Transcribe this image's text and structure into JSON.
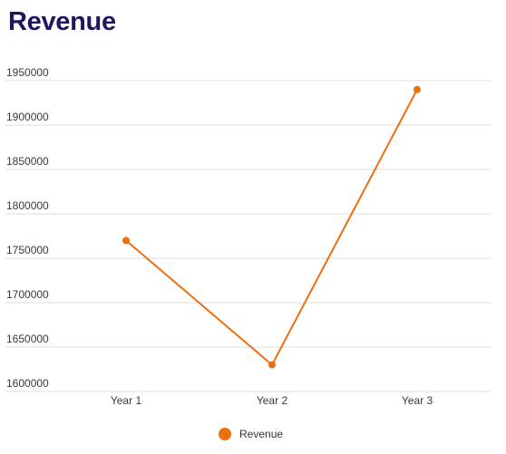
{
  "chart_data": {
    "type": "line",
    "title": "Revenue",
    "categories": [
      "Year 1",
      "Year 2",
      "Year 3"
    ],
    "series": [
      {
        "name": "Revenue",
        "values": [
          1770000,
          1630000,
          1940000
        ],
        "color": "#ee6f0f"
      }
    ],
    "ylim": [
      1600000,
      1950000
    ],
    "yticks": [
      "1600000",
      "1650000",
      "1700000",
      "1750000",
      "1800000",
      "1850000",
      "1900000",
      "1950000"
    ],
    "grid": true,
    "legend": "bottom-center"
  },
  "colors": {
    "title": "#1f1660",
    "grid": "#dcdcdc",
    "axis_text": "#3a3a3a"
  }
}
